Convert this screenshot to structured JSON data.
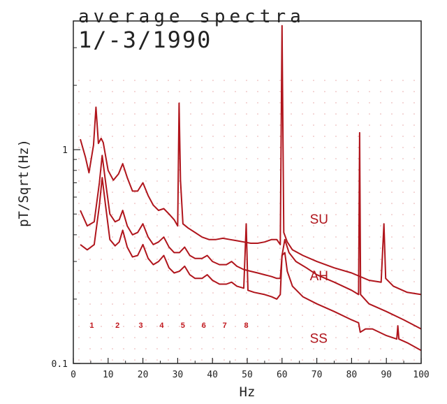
{
  "colors": {
    "series": "#b0151c",
    "grid_dots": "#e6a6a6",
    "axis": "#222222"
  },
  "chart_data": {
    "type": "line",
    "title": "average spectra",
    "subtitle": "1/-3/1990",
    "xlabel": "Hz",
    "ylabel": "pT/Sqrt(Hz)",
    "xlim": [
      0,
      100
    ],
    "ylim": [
      0.1,
      4
    ],
    "yscale": "log",
    "grid": "dotted",
    "x_ticks": [
      "0",
      "10",
      "20",
      "30",
      "40",
      "50",
      "60",
      "70",
      "80",
      "90",
      "100"
    ],
    "y_ticks": [
      "0.1",
      "1"
    ],
    "peak_labels": [
      "1",
      "2",
      "3",
      "4",
      "5",
      "6",
      "7",
      "8"
    ],
    "peak_label_x": [
      5.3,
      12.7,
      19.4,
      25.4,
      31.5,
      37.5,
      43.5,
      49.7
    ],
    "series": [
      {
        "name": "SU",
        "values": [
          [
            2,
            1.12
          ],
          [
            3.5,
            0.92
          ],
          [
            4.5,
            0.78
          ],
          [
            5.8,
            1.05
          ],
          [
            6.5,
            1.58
          ],
          [
            7.2,
            1.07
          ],
          [
            8,
            1.13
          ],
          [
            8.6,
            1.08
          ],
          [
            10,
            0.8
          ],
          [
            11.5,
            0.72
          ],
          [
            13,
            0.77
          ],
          [
            14.2,
            0.86
          ],
          [
            15.5,
            0.74
          ],
          [
            17,
            0.64
          ],
          [
            18.5,
            0.64
          ],
          [
            20,
            0.7
          ],
          [
            21.5,
            0.61
          ],
          [
            23,
            0.55
          ],
          [
            24.5,
            0.52
          ],
          [
            26,
            0.53
          ],
          [
            27.5,
            0.5
          ],
          [
            29,
            0.47
          ],
          [
            30,
            0.44
          ],
          [
            30.4,
            1.65
          ],
          [
            30.8,
            0.72
          ],
          [
            31.5,
            0.45
          ],
          [
            33,
            0.43
          ],
          [
            35,
            0.41
          ],
          [
            37,
            0.39
          ],
          [
            39,
            0.38
          ],
          [
            41,
            0.38
          ],
          [
            43,
            0.385
          ],
          [
            45,
            0.38
          ],
          [
            47,
            0.375
          ],
          [
            49,
            0.37
          ],
          [
            51,
            0.365
          ],
          [
            53,
            0.365
          ],
          [
            55,
            0.37
          ],
          [
            57,
            0.38
          ],
          [
            58.5,
            0.38
          ],
          [
            59.5,
            0.36
          ],
          [
            60,
            3.8
          ],
          [
            60.5,
            0.41
          ],
          [
            61.5,
            0.37
          ],
          [
            63,
            0.34
          ],
          [
            66,
            0.32
          ],
          [
            70,
            0.3
          ],
          [
            75,
            0.28
          ],
          [
            80,
            0.265
          ],
          [
            85,
            0.245
          ],
          [
            88.5,
            0.24
          ],
          [
            89.3,
            0.45
          ],
          [
            89.8,
            0.25
          ],
          [
            92,
            0.23
          ],
          [
            96,
            0.215
          ],
          [
            100,
            0.21
          ]
        ]
      },
      {
        "name": "AH",
        "values": [
          [
            2,
            0.52
          ],
          [
            4,
            0.44
          ],
          [
            6,
            0.46
          ],
          [
            7.5,
            0.7
          ],
          [
            8.3,
            0.94
          ],
          [
            9.2,
            0.72
          ],
          [
            10.5,
            0.5
          ],
          [
            12,
            0.46
          ],
          [
            13.2,
            0.47
          ],
          [
            14.2,
            0.52
          ],
          [
            15.5,
            0.44
          ],
          [
            17,
            0.4
          ],
          [
            18.5,
            0.41
          ],
          [
            20,
            0.45
          ],
          [
            21.5,
            0.39
          ],
          [
            23,
            0.36
          ],
          [
            24.5,
            0.37
          ],
          [
            26,
            0.39
          ],
          [
            27.5,
            0.35
          ],
          [
            29,
            0.33
          ],
          [
            30.5,
            0.33
          ],
          [
            32,
            0.35
          ],
          [
            33.5,
            0.32
          ],
          [
            35,
            0.31
          ],
          [
            37,
            0.31
          ],
          [
            38.5,
            0.32
          ],
          [
            40,
            0.3
          ],
          [
            42,
            0.29
          ],
          [
            44,
            0.29
          ],
          [
            45.5,
            0.3
          ],
          [
            47,
            0.285
          ],
          [
            49,
            0.275
          ],
          [
            51,
            0.27
          ],
          [
            53,
            0.265
          ],
          [
            55,
            0.26
          ],
          [
            57,
            0.255
          ],
          [
            58.5,
            0.25
          ],
          [
            59.5,
            0.25
          ],
          [
            60,
            0.32
          ],
          [
            60.8,
            0.38
          ],
          [
            62,
            0.33
          ],
          [
            64,
            0.3
          ],
          [
            67,
            0.28
          ],
          [
            70,
            0.26
          ],
          [
            75,
            0.24
          ],
          [
            80,
            0.22
          ],
          [
            82,
            0.21
          ],
          [
            82.3,
            1.2
          ],
          [
            82.6,
            0.21
          ],
          [
            85,
            0.19
          ],
          [
            90,
            0.175
          ],
          [
            95,
            0.16
          ],
          [
            100,
            0.145
          ]
        ]
      },
      {
        "name": "SS",
        "values": [
          [
            2,
            0.36
          ],
          [
            4,
            0.34
          ],
          [
            6,
            0.36
          ],
          [
            7.5,
            0.55
          ],
          [
            8.3,
            0.74
          ],
          [
            9.2,
            0.56
          ],
          [
            10.5,
            0.38
          ],
          [
            12,
            0.355
          ],
          [
            13.2,
            0.37
          ],
          [
            14.2,
            0.42
          ],
          [
            15.5,
            0.35
          ],
          [
            17,
            0.315
          ],
          [
            18.5,
            0.32
          ],
          [
            20,
            0.36
          ],
          [
            21.5,
            0.31
          ],
          [
            23,
            0.29
          ],
          [
            24.5,
            0.3
          ],
          [
            26,
            0.32
          ],
          [
            27.5,
            0.28
          ],
          [
            29,
            0.265
          ],
          [
            30.5,
            0.27
          ],
          [
            32,
            0.285
          ],
          [
            33.5,
            0.26
          ],
          [
            35,
            0.25
          ],
          [
            37,
            0.25
          ],
          [
            38.5,
            0.26
          ],
          [
            40,
            0.245
          ],
          [
            42,
            0.235
          ],
          [
            44,
            0.235
          ],
          [
            45.5,
            0.24
          ],
          [
            47,
            0.23
          ],
          [
            49,
            0.225
          ],
          [
            49.7,
            0.45
          ],
          [
            50.2,
            0.22
          ],
          [
            52,
            0.215
          ],
          [
            55,
            0.21
          ],
          [
            57,
            0.205
          ],
          [
            58.5,
            0.2
          ],
          [
            59.5,
            0.21
          ],
          [
            60,
            0.32
          ],
          [
            60.8,
            0.33
          ],
          [
            61.5,
            0.27
          ],
          [
            63,
            0.23
          ],
          [
            66,
            0.205
          ],
          [
            70,
            0.19
          ],
          [
            75,
            0.175
          ],
          [
            80,
            0.16
          ],
          [
            82,
            0.155
          ],
          [
            82.5,
            0.14
          ],
          [
            84,
            0.145
          ],
          [
            86,
            0.145
          ],
          [
            90,
            0.135
          ],
          [
            93,
            0.13
          ],
          [
            93.3,
            0.15
          ],
          [
            93.6,
            0.13
          ],
          [
            96,
            0.125
          ],
          [
            100,
            0.115
          ]
        ]
      }
    ],
    "series_label_positions": {
      "SU": [
        68,
        0.45
      ],
      "AH": [
        68,
        0.245
      ],
      "SS": [
        68,
        0.125
      ]
    }
  }
}
